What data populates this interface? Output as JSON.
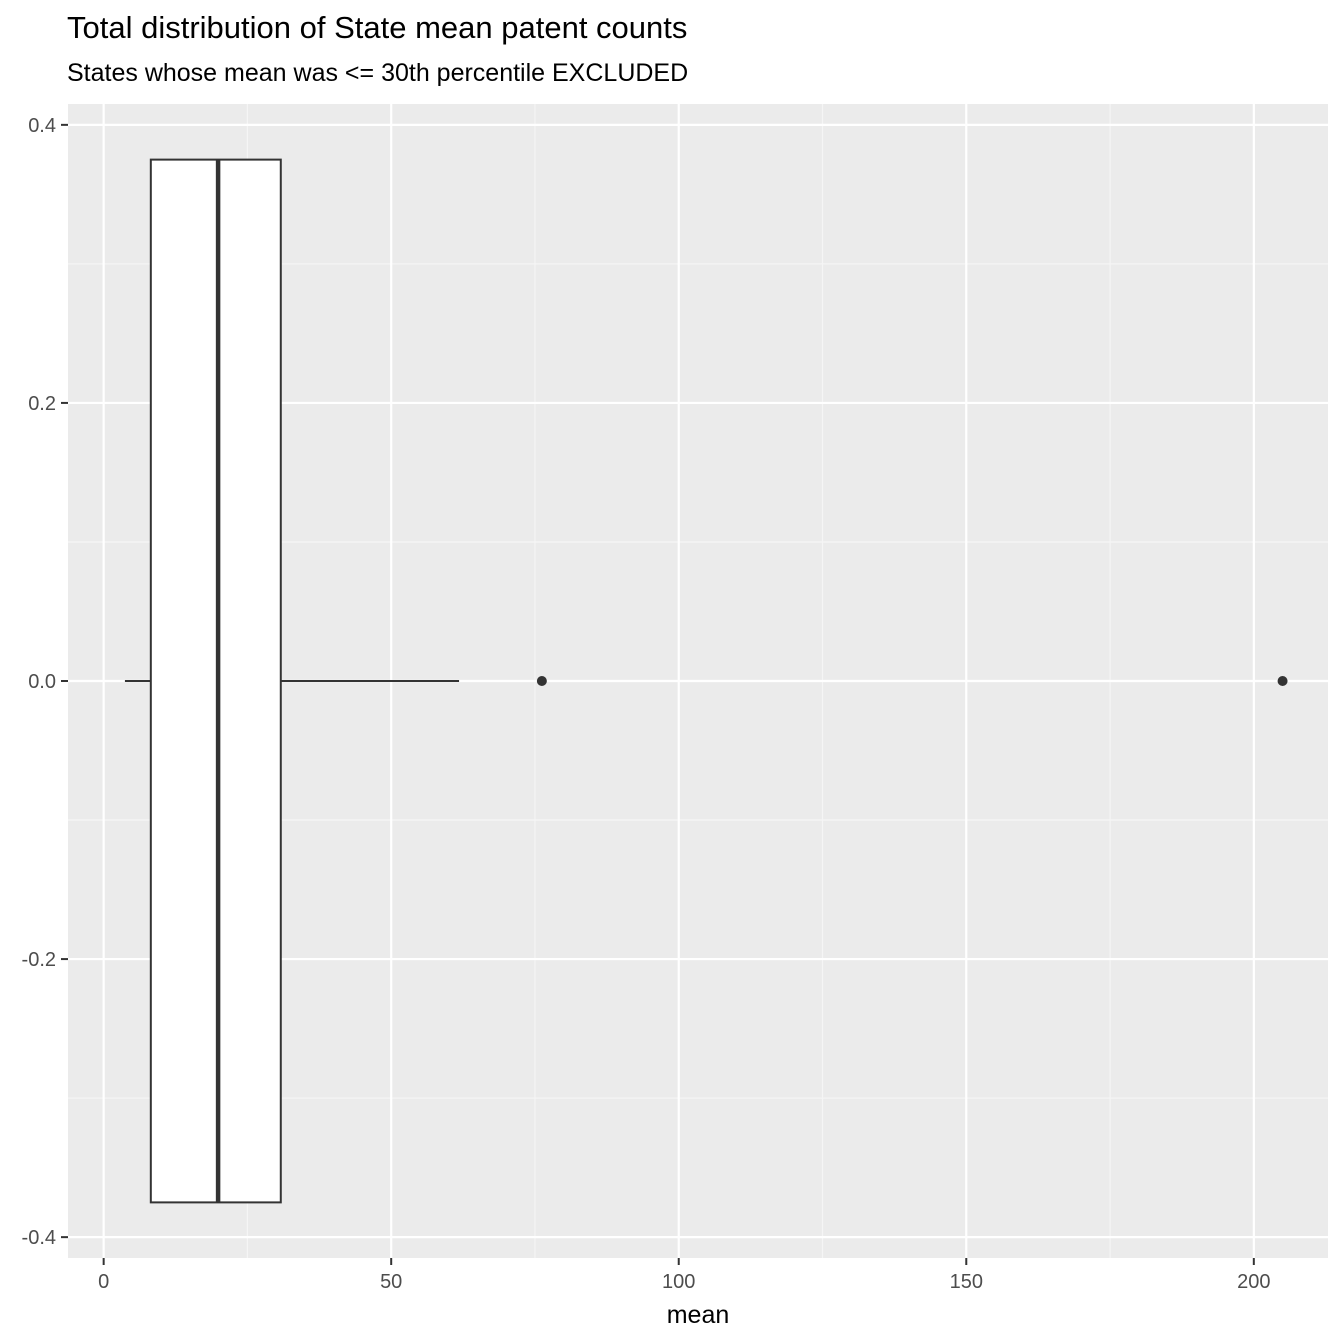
{
  "chart_data": {
    "type": "boxplot",
    "title": "Total distribution of State mean patent counts",
    "subtitle": "States whose mean was <= 30th percentile EXCLUDED",
    "xlabel": "mean",
    "ylabel": "",
    "xlim": [
      -6.2,
      212.9
    ],
    "ylim": [
      -0.415,
      0.415
    ],
    "x_ticks": [
      0,
      50,
      100,
      150,
      200
    ],
    "x_tick_labels": [
      "0",
      "50",
      "100",
      "150",
      "200"
    ],
    "y_ticks": [
      0.4,
      0.2,
      0.0,
      -0.2,
      -0.4
    ],
    "y_tick_labels": [
      "0.4",
      "0.2",
      "0.0",
      "-0.2",
      "-0.4"
    ],
    "grid": true,
    "box": {
      "whisker_low": 3.7,
      "q1": 8.2,
      "median": 19.9,
      "q3": 30.8,
      "whisker_high": 61.8,
      "box_ymin": -0.375,
      "box_ymax": 0.375,
      "y_center": 0
    },
    "outliers": [
      {
        "x": 76.2,
        "y": 0
      },
      {
        "x": 205.0,
        "y": 0
      }
    ],
    "colors": {
      "panel_bg": "#ebebeb",
      "grid_major": "#ffffff",
      "grid_minor": "#f5f5f5",
      "box_fill": "#ffffff",
      "box_line": "#333333",
      "tick_text": "#4d4d4d",
      "tick_mark": "#333333"
    }
  }
}
